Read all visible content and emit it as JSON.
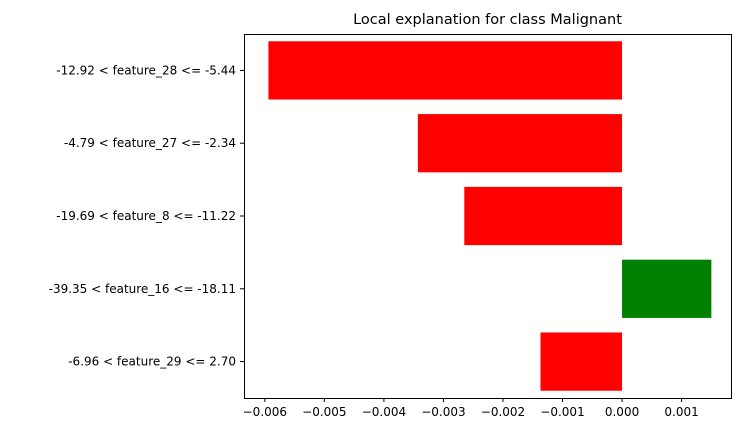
{
  "chart_data": {
    "type": "bar",
    "orientation": "horizontal",
    "title": "Local explanation for class Malignant",
    "xlabel": "",
    "ylabel": "",
    "categories": [
      "-12.92 < feature_28 <= -5.44",
      "-4.79 < feature_27 <= -2.34",
      "-19.69 < feature_8 <= -11.22",
      "-39.35 < feature_16 <= -18.11",
      "-6.96 < feature_29 <= 2.70"
    ],
    "values": [
      -0.00594,
      -0.00343,
      -0.00265,
      0.0015,
      -0.00137
    ],
    "colors": [
      "#ff0000",
      "#ff0000",
      "#ff0000",
      "#008000",
      "#ff0000"
    ],
    "xlim": [
      -0.00635,
      0.00183
    ],
    "xticks": [
      -0.006,
      -0.005,
      -0.004,
      -0.003,
      -0.002,
      -0.001,
      0.0,
      0.001
    ],
    "xtick_labels": [
      "−0.006",
      "−0.005",
      "−0.004",
      "−0.003",
      "−0.002",
      "−0.001",
      "0.000",
      "0.001"
    ],
    "grid": false,
    "legend": "none"
  }
}
